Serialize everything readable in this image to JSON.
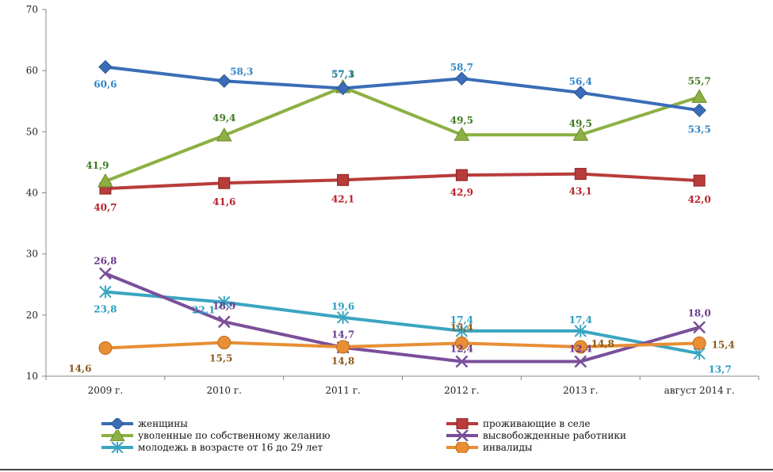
{
  "chart_data": {
    "type": "line",
    "categories": [
      "2009 г.",
      "2010 г.",
      "2011 г.",
      "2012 г.",
      "2013 г.",
      "август 2014  г."
    ],
    "ylim": [
      10,
      70
    ],
    "yticks": [
      10,
      20,
      30,
      40,
      50,
      60,
      70
    ],
    "grid": false,
    "legend_position": "bottom",
    "series": [
      {
        "name": "женщины",
        "values": [
          60.6,
          58.3,
          57.1,
          58.7,
          56.4,
          53.5
        ],
        "labels": [
          "60,6",
          "58,3",
          "57,1",
          "58,7",
          "56,4",
          "53,5"
        ],
        "color": "#3a6db5",
        "label_color": "#2e86c8",
        "marker": "diamond"
      },
      {
        "name": "проживающие в селе",
        "values": [
          40.7,
          41.6,
          42.1,
          42.9,
          43.1,
          42.0
        ],
        "labels": [
          "40,7",
          "41,6",
          "42,1",
          "42,9",
          "43,1",
          "42,0"
        ],
        "color": "#b83c3a",
        "label_color": "#b8202a",
        "marker": "square"
      },
      {
        "name": "уволенные по собственному желанию",
        "values": [
          41.9,
          49.4,
          57.3,
          49.5,
          49.5,
          55.7
        ],
        "labels": [
          "41,9",
          "49,4",
          "57,3",
          "49,5",
          "49,5",
          "55,7"
        ],
        "color": "#8db043",
        "label_color": "#3d7a1e",
        "marker": "triangle"
      },
      {
        "name": "высвобожденные работники",
        "values": [
          26.8,
          18.9,
          14.7,
          12.4,
          12.4,
          18.0
        ],
        "labels": [
          "26,8",
          "18,9",
          "14,7",
          "12,4",
          "12,4",
          "18,0"
        ],
        "color": "#7a4f9b",
        "label_color": "#6a3a8e",
        "marker": "x"
      },
      {
        "name": "молодежь в возрасте от 16 до 29 лет",
        "values": [
          23.8,
          22.1,
          19.6,
          17.4,
          17.4,
          13.7
        ],
        "labels": [
          "23,8",
          "22,1",
          "19,6",
          "17,4",
          "17,4",
          "13,7"
        ],
        "color": "#3aa5c0",
        "label_color": "#2a9fc2",
        "marker": "star"
      },
      {
        "name": "инвалиды",
        "values": [
          14.6,
          15.5,
          14.8,
          15.4,
          14.8,
          15.4
        ],
        "labels": [
          "14,6",
          "15,5",
          "14,8",
          "15,4",
          "14,8",
          "15,4"
        ],
        "color": "#e88e35",
        "label_color": "#8a5a1a",
        "marker": "circle"
      }
    ]
  }
}
